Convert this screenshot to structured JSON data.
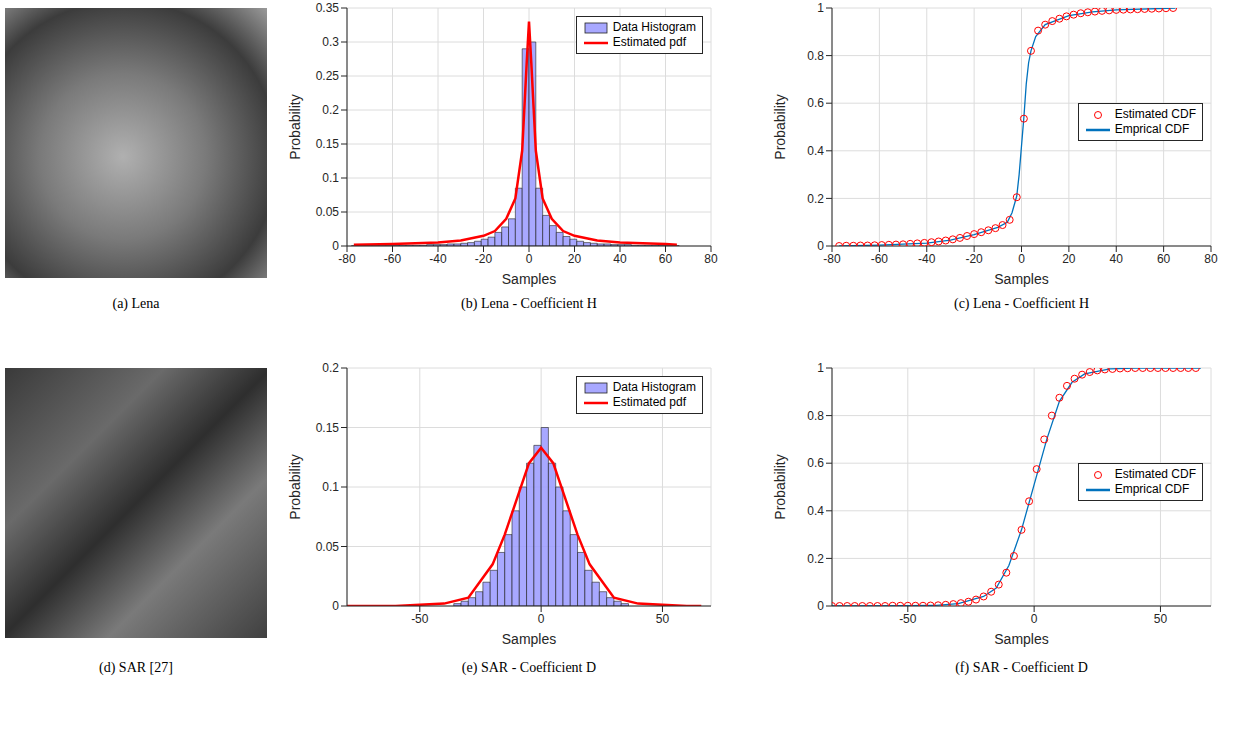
{
  "chart_data": [
    {
      "type": "image",
      "caption": "(a) Lena"
    },
    {
      "type": "histogram",
      "caption": "(b) Lena - Coefficient H",
      "xlabel": "Samples",
      "ylabel": "Probability",
      "xlim": [
        -80,
        80
      ],
      "ylim": [
        0,
        0.35
      ],
      "xticks": [
        -80,
        -60,
        -40,
        -20,
        0,
        20,
        40,
        60,
        80
      ],
      "yticks": [
        0,
        0.05,
        0.1,
        0.15,
        0.2,
        0.25,
        0.3,
        0.35
      ],
      "grid": true,
      "legend": "upper right",
      "series": [
        {
          "name": "Data Histogram",
          "type": "histogram",
          "color": "#9999ff",
          "bins": [
            -78,
            -75,
            -72,
            -69,
            -66,
            -63,
            -60,
            -57,
            -54,
            -51,
            -48,
            -45,
            -42,
            -39,
            -36,
            -33,
            -30,
            -27,
            -24,
            -21,
            -18,
            -15,
            -12,
            -9,
            -6,
            -3,
            0,
            3,
            6,
            9,
            12,
            15,
            18,
            21,
            24,
            27,
            30,
            33,
            36,
            39,
            42,
            45,
            48,
            51,
            54,
            57,
            60,
            63,
            66
          ],
          "values": [
            0.0005,
            0.0005,
            0.0005,
            0.0005,
            0.0005,
            0.0005,
            0.001,
            0.001,
            0.001,
            0.001,
            0.001,
            0.002,
            0.002,
            0.002,
            0.003,
            0.003,
            0.004,
            0.005,
            0.007,
            0.01,
            0.013,
            0.02,
            0.028,
            0.04,
            0.085,
            0.29,
            0.3,
            0.085,
            0.045,
            0.03,
            0.02,
            0.014,
            0.01,
            0.007,
            0.005,
            0.004,
            0.003,
            0.003,
            0.002,
            0.002,
            0.002,
            0.001,
            0.001,
            0.001,
            0.001,
            0.001,
            0.0005,
            0.0005
          ]
        },
        {
          "name": "Estimated pdf",
          "type": "line",
          "color": "#ff0000",
          "line_style": "solid",
          "x": [
            -77,
            -60,
            -40,
            -30,
            -20,
            -15,
            -10,
            -6,
            -3,
            -1,
            0,
            1,
            3,
            6,
            10,
            15,
            20,
            30,
            40,
            60,
            65
          ],
          "values": [
            0.002,
            0.003,
            0.005,
            0.008,
            0.015,
            0.022,
            0.04,
            0.07,
            0.14,
            0.27,
            0.33,
            0.27,
            0.14,
            0.07,
            0.04,
            0.022,
            0.015,
            0.008,
            0.005,
            0.003,
            0.002
          ]
        }
      ]
    },
    {
      "type": "line",
      "caption": "(c) Lena - Coefficient H",
      "xlabel": "Samples",
      "ylabel": "Probability",
      "xlim": [
        -80,
        80
      ],
      "ylim": [
        0,
        1
      ],
      "xticks": [
        -80,
        -60,
        -40,
        -20,
        0,
        20,
        40,
        60,
        80
      ],
      "yticks": [
        0,
        0.2,
        0.4,
        0.6,
        0.8,
        1
      ],
      "grid": true,
      "legend": "right",
      "series": [
        {
          "name": "Estimated CDF",
          "type": "line",
          "color": "#ff0000",
          "marker": "o",
          "line_style": "none",
          "x": [
            -77,
            -74,
            -71,
            -68,
            -65,
            -62,
            -59,
            -56,
            -53,
            -50,
            -47,
            -44,
            -41,
            -38,
            -35,
            -32,
            -29,
            -26,
            -23,
            -20,
            -17,
            -14,
            -11,
            -8,
            -5,
            -2,
            1,
            4,
            7,
            10,
            13,
            16,
            19,
            22,
            25,
            28,
            31,
            34,
            37,
            40,
            43,
            46,
            49,
            52,
            55,
            58,
            61,
            64
          ],
          "values": [
            0,
            0.001,
            0.001,
            0.002,
            0.002,
            0.003,
            0.004,
            0.005,
            0.006,
            0.007,
            0.009,
            0.011,
            0.013,
            0.016,
            0.019,
            0.023,
            0.028,
            0.034,
            0.042,
            0.05,
            0.058,
            0.066,
            0.075,
            0.088,
            0.11,
            0.205,
            0.535,
            0.82,
            0.905,
            0.93,
            0.945,
            0.955,
            0.965,
            0.972,
            0.978,
            0.982,
            0.985,
            0.988,
            0.99,
            0.992,
            0.993,
            0.994,
            0.995,
            0.996,
            0.997,
            0.998,
            0.999,
            1
          ]
        },
        {
          "name": "Emprical CDF",
          "type": "line",
          "color": "#0072bd",
          "line_style": "solid",
          "x": [
            -77,
            -60,
            -40,
            -30,
            -20,
            -10,
            -6,
            -4,
            -2,
            -1,
            0,
            1,
            2,
            3,
            4,
            6,
            10,
            20,
            30,
            40,
            65
          ],
          "values": [
            0,
            0.004,
            0.012,
            0.025,
            0.048,
            0.078,
            0.1,
            0.14,
            0.21,
            0.3,
            0.42,
            0.54,
            0.68,
            0.77,
            0.82,
            0.88,
            0.93,
            0.968,
            0.984,
            0.992,
            1
          ]
        }
      ]
    },
    {
      "type": "image",
      "caption": "(d) SAR [27]"
    },
    {
      "type": "histogram",
      "caption": "(e) SAR - Coefficient D",
      "xlabel": "Samples",
      "ylabel": "Probability",
      "xlim": [
        -80,
        70
      ],
      "ylim": [
        0,
        0.2
      ],
      "xticks": [
        -50,
        0,
        50
      ],
      "yticks": [
        0,
        0.05,
        0.1,
        0.15,
        0.2
      ],
      "grid": true,
      "legend": "upper right",
      "series": [
        {
          "name": "Data Histogram",
          "type": "histogram",
          "color": "#9999ff",
          "bins": [
            -36,
            -33,
            -30,
            -27,
            -24,
            -21,
            -18,
            -15,
            -12,
            -9,
            -6,
            -3,
            0,
            3,
            6,
            9,
            12,
            15,
            18,
            21,
            24,
            27,
            30,
            33,
            36
          ],
          "values": [
            0.002,
            0.004,
            0.007,
            0.012,
            0.02,
            0.03,
            0.045,
            0.06,
            0.08,
            0.1,
            0.12,
            0.135,
            0.15,
            0.12,
            0.1,
            0.08,
            0.06,
            0.045,
            0.03,
            0.02,
            0.012,
            0.007,
            0.004,
            0.002
          ]
        },
        {
          "name": "Estimated pdf",
          "type": "line",
          "color": "#ff0000",
          "line_style": "solid",
          "x": [
            -80,
            -60,
            -40,
            -30,
            -20,
            -15,
            -10,
            -5,
            0,
            5,
            10,
            15,
            20,
            30,
            40,
            60,
            66
          ],
          "values": [
            0,
            0,
            0.002,
            0.007,
            0.035,
            0.06,
            0.09,
            0.12,
            0.133,
            0.12,
            0.09,
            0.06,
            0.035,
            0.007,
            0.002,
            0,
            0
          ]
        }
      ]
    },
    {
      "type": "line",
      "caption": "(f) SAR - Coefficient D",
      "xlabel": "Samples",
      "ylabel": "Probability",
      "xlim": [
        -80,
        70
      ],
      "ylim": [
        0,
        1
      ],
      "xticks": [
        -50,
        0,
        50
      ],
      "yticks": [
        0,
        0.2,
        0.4,
        0.6,
        0.8,
        1
      ],
      "grid": true,
      "legend": "right",
      "series": [
        {
          "name": "Estimated CDF",
          "type": "line",
          "color": "#ff0000",
          "marker": "o",
          "line_style": "none",
          "x": [
            -80,
            -77,
            -74,
            -71,
            -68,
            -65,
            -62,
            -59,
            -56,
            -53,
            -50,
            -47,
            -44,
            -41,
            -38,
            -35,
            -32,
            -29,
            -26,
            -23,
            -20,
            -17,
            -14,
            -11,
            -8,
            -5,
            -2,
            1,
            4,
            7,
            10,
            13,
            16,
            19,
            22,
            25,
            28,
            31,
            34,
            37,
            40,
            43,
            46,
            49,
            52,
            55,
            58,
            61,
            64
          ],
          "values": [
            0,
            0,
            0,
            0,
            0,
            0,
            0,
            0,
            0.001,
            0.001,
            0.001,
            0.001,
            0.001,
            0.002,
            0.003,
            0.005,
            0.008,
            0.012,
            0.018,
            0.027,
            0.04,
            0.06,
            0.09,
            0.14,
            0.21,
            0.32,
            0.44,
            0.575,
            0.7,
            0.8,
            0.875,
            0.925,
            0.955,
            0.972,
            0.983,
            0.99,
            0.994,
            0.996,
            0.998,
            0.999,
            1,
            1,
            1,
            1,
            1,
            1,
            1,
            1,
            1
          ]
        },
        {
          "name": "Emprical CDF",
          "type": "line",
          "color": "#0072bd",
          "line_style": "solid",
          "x": [
            -80,
            -50,
            -40,
            -30,
            -20,
            -15,
            -10,
            -5,
            0,
            5,
            10,
            15,
            20,
            30,
            40,
            66
          ],
          "values": [
            0,
            0.001,
            0.002,
            0.01,
            0.04,
            0.075,
            0.17,
            0.32,
            0.51,
            0.7,
            0.86,
            0.94,
            0.975,
            0.996,
            1,
            1
          ]
        }
      ]
    }
  ]
}
